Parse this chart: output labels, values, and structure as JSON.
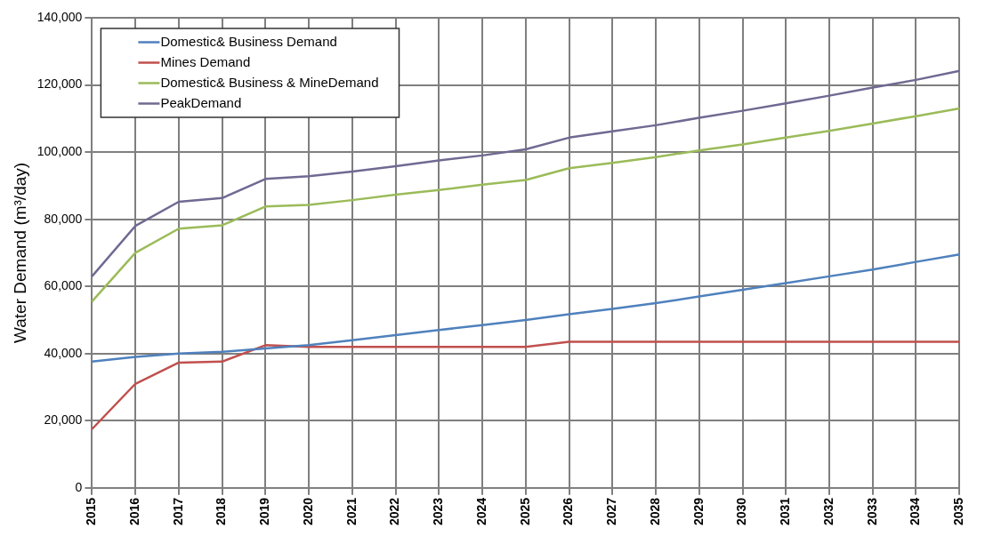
{
  "chart_data": {
    "type": "line",
    "ylabel": "Water Demand (m³/day)",
    "categories": [
      "2015",
      "2016",
      "2017",
      "2018",
      "2019",
      "2020",
      "2021",
      "2022",
      "2023",
      "2024",
      "2025",
      "2026",
      "2027",
      "2028",
      "2029",
      "2030",
      "2031",
      "2032",
      "2033",
      "2034",
      "2035"
    ],
    "series": [
      {
        "name": "Domestic& Business Demand",
        "color": "#4f81bd",
        "values": [
          37600,
          39000,
          40000,
          40500,
          41500,
          42500,
          44000,
          45500,
          47000,
          48500,
          50000,
          51700,
          53300,
          55000,
          57000,
          59000,
          61000,
          63000,
          65000,
          67300,
          69500
        ]
      },
      {
        "name": "Mines Demand",
        "color": "#c0504d",
        "values": [
          17500,
          31000,
          37300,
          37600,
          42500,
          42000,
          42000,
          42000,
          42000,
          42000,
          42000,
          43500,
          43500,
          43500,
          43500,
          43500,
          43500,
          43500,
          43500,
          43500,
          43500
        ]
      },
      {
        "name": "Domestic& Business & MineDemand",
        "color": "#9bbb59",
        "values": [
          55500,
          70000,
          77200,
          78200,
          83800,
          84300,
          85700,
          87300,
          88700,
          90300,
          91700,
          95200,
          96800,
          98500,
          100500,
          102300,
          104300,
          106300,
          108500,
          110700,
          113000
        ]
      },
      {
        "name": "PeakDemand",
        "color": "#6f6a92",
        "values": [
          63000,
          78000,
          85200,
          86300,
          92000,
          92800,
          94200,
          95800,
          97500,
          99000,
          100800,
          104300,
          106200,
          108000,
          110200,
          112300,
          114500,
          116800,
          119200,
          121500,
          124200
        ]
      }
    ],
    "ylim": [
      0,
      140000
    ],
    "yticks": [
      {
        "value": 0,
        "label": "0"
      },
      {
        "value": 20000,
        "label": "20,000"
      },
      {
        "value": 40000,
        "label": "40,000"
      },
      {
        "value": 60000,
        "label": "60,000"
      },
      {
        "value": 80000,
        "label": "80,000"
      },
      {
        "value": 100000,
        "label": "100,000"
      },
      {
        "value": 120000,
        "label": "120,000"
      },
      {
        "value": 140000,
        "label": "140,000"
      }
    ],
    "grid": true,
    "legend": "top left",
    "marker": "none",
    "line_style": "solid"
  }
}
